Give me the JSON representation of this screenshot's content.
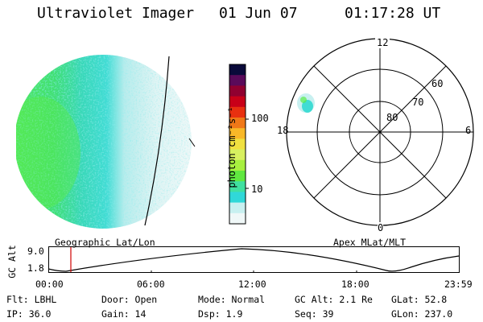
{
  "header": {
    "instrument": "Ultraviolet Imager",
    "date": "01 Jun 07",
    "time": "01:17:28 UT"
  },
  "colorbar": {
    "unit_label": "photon cm⁻²s⁻¹",
    "ticks": [
      "100",
      "10"
    ],
    "colors": [
      "#0a0a3a",
      "#5a0a5a",
      "#900030",
      "#c80018",
      "#e83010",
      "#f07818",
      "#f8b828",
      "#f0e040",
      "#d8f060",
      "#a8f040",
      "#60e840",
      "#40e0a0",
      "#30d8d8",
      "#c8f0f0",
      "#f0f8f8"
    ]
  },
  "polar_plot": {
    "mlt_labels": {
      "top": "12",
      "left": "18",
      "right": "6",
      "bottom": "0"
    },
    "lat_labels": [
      "60",
      "70",
      "80"
    ]
  },
  "map_labels": {
    "left": "Geographic Lat/Lon",
    "right": "Apex MLat/MLT"
  },
  "altitude_plot": {
    "y_axis_title": "GC Alt",
    "y_ticks": [
      "9.0",
      "1.8"
    ],
    "x_ticks": [
      "00:00",
      "06:00",
      "12:00",
      "18:00",
      "23:59"
    ]
  },
  "status": {
    "row1": [
      "Flt: LBHL",
      "Door: Open",
      "Mode: Normal",
      "GC Alt: 2.1 Re",
      "GLat:  52.8"
    ],
    "row2": [
      "IP: 36.0",
      "Gain: 14",
      "Dsp:   1.9",
      "Seq: 39",
      "GLon: 237.0"
    ]
  }
}
